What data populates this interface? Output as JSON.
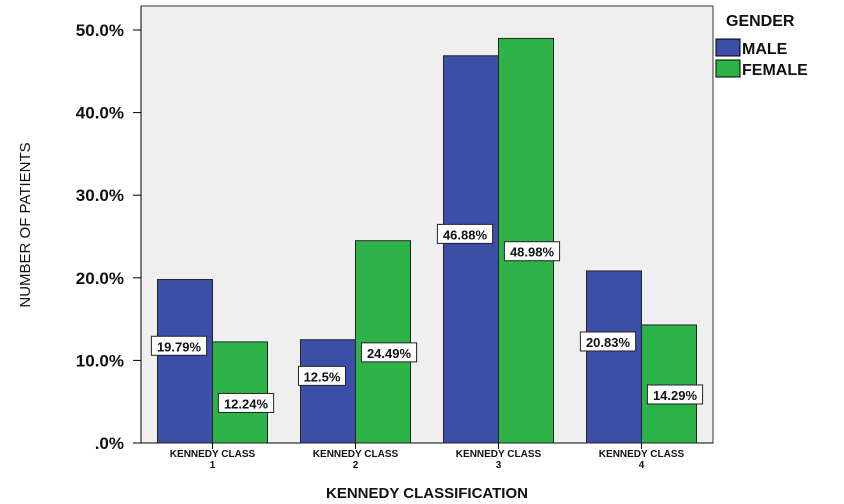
{
  "chart_data": {
    "type": "bar",
    "title": "",
    "xlabel": "KENNEDY CLASSIFICATION",
    "ylabel": "NUMBER OF PATIENTS",
    "ylim": [
      0,
      50
    ],
    "yticks": [
      ".0%",
      "10.0%",
      "20.0%",
      "30.0%",
      "40.0%",
      "50.0%"
    ],
    "categories": [
      [
        "KENNEDY CLASS",
        "1"
      ],
      [
        "KENNEDY CLASS",
        "2"
      ],
      [
        "KENNEDY CLASS",
        "3"
      ],
      [
        "KENNEDY CLASS",
        "4"
      ]
    ],
    "series": [
      {
        "name": "MALE",
        "color": "#3c4fa8",
        "values": [
          19.79,
          12.5,
          46.88,
          20.83
        ],
        "labels": [
          "19.79%",
          "12.5%",
          "46.88%",
          "20.83%"
        ]
      },
      {
        "name": "FEMALE",
        "color": "#2db34a",
        "values": [
          12.24,
          24.49,
          48.98,
          14.29
        ],
        "labels": [
          "12.24%",
          "24.49%",
          "48.98%",
          "14.29%"
        ]
      }
    ],
    "legend": {
      "title": "GENDER",
      "position": "top-right"
    },
    "grid": false,
    "plot_background": "#efefef"
  }
}
